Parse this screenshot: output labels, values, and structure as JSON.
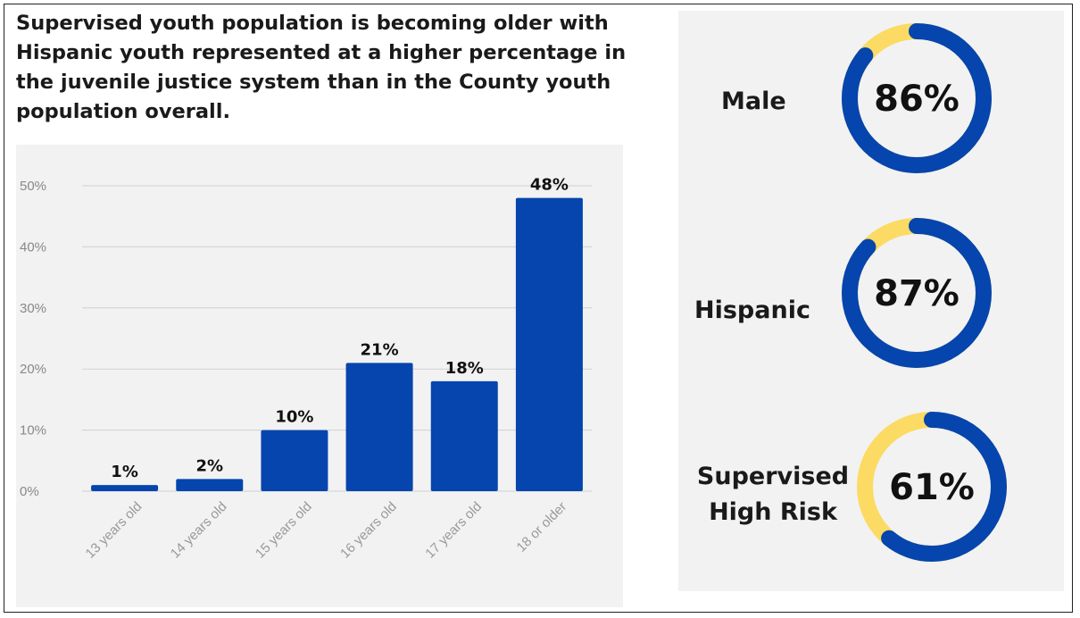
{
  "title": "Supervised youth population is becoming older with Hispanic youth represented at a higher percentage in the juvenile justice system than in the County youth population overall.",
  "chart_data": {
    "type": "bar",
    "categories": [
      "13 years old",
      "14 years old",
      "15 years old",
      "16 years old",
      "17 years old",
      "18 or older"
    ],
    "values": [
      1,
      2,
      10,
      21,
      18,
      48
    ],
    "value_labels": [
      "1%",
      "2%",
      "10%",
      "21%",
      "18%",
      "48%"
    ],
    "yticks": [
      "0%",
      "10%",
      "20%",
      "30%",
      "40%",
      "50%"
    ],
    "ylim": [
      0,
      50
    ],
    "grid": true,
    "xlabel": "",
    "ylabel": "",
    "colors": {
      "bar": "#0545ad",
      "grid": "#d0d0d0"
    }
  },
  "donuts": [
    {
      "label": "Male",
      "value": 86,
      "value_label": "86%"
    },
    {
      "label": "Hispanic",
      "value": 87,
      "value_label": "87%"
    },
    {
      "label": "Supervised High Risk",
      "value": 61,
      "value_label": "61%"
    }
  ],
  "colors": {
    "primary": "#0545ad",
    "secondary": "#fbdb63",
    "panel": "#f2f2f2"
  }
}
